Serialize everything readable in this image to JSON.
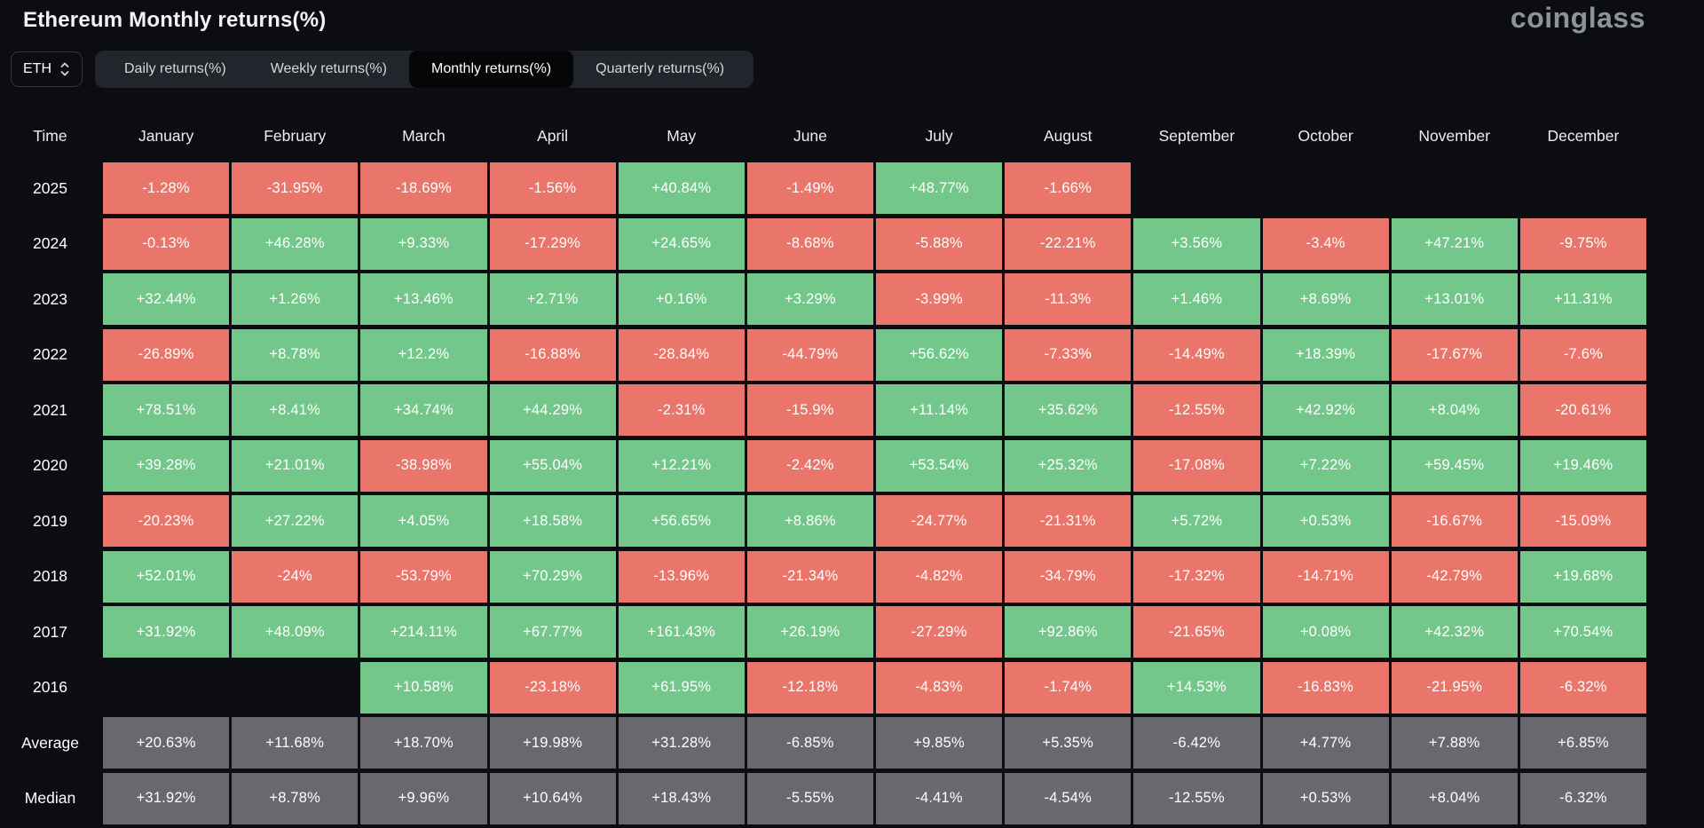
{
  "page": {
    "title": "Ethereum Monthly returns(%)",
    "logo": "coinglass"
  },
  "controls": {
    "symbol": "ETH",
    "tabs": [
      {
        "label": "Daily returns(%)",
        "active": false
      },
      {
        "label": "Weekly returns(%)",
        "active": false
      },
      {
        "label": "Monthly returns(%)",
        "active": true
      },
      {
        "label": "Quarterly returns(%)",
        "active": false
      }
    ]
  },
  "chart_data": {
    "type": "heatmap",
    "title": "Ethereum Monthly returns(%)",
    "columns": [
      "Time",
      "January",
      "February",
      "March",
      "April",
      "May",
      "June",
      "July",
      "August",
      "September",
      "October",
      "November",
      "December"
    ],
    "rows": [
      {
        "label": "2025",
        "kind": "year",
        "values": [
          "-1.28%",
          "-31.95%",
          "-18.69%",
          "-1.56%",
          "+40.84%",
          "-1.49%",
          "+48.77%",
          "-1.66%",
          "",
          "",
          "",
          ""
        ]
      },
      {
        "label": "2024",
        "kind": "year",
        "values": [
          "-0.13%",
          "+46.28%",
          "+9.33%",
          "-17.29%",
          "+24.65%",
          "-8.68%",
          "-5.88%",
          "-22.21%",
          "+3.56%",
          "-3.4%",
          "+47.21%",
          "-9.75%"
        ]
      },
      {
        "label": "2023",
        "kind": "year",
        "values": [
          "+32.44%",
          "+1.26%",
          "+13.46%",
          "+2.71%",
          "+0.16%",
          "+3.29%",
          "-3.99%",
          "-11.3%",
          "+1.46%",
          "+8.69%",
          "+13.01%",
          "+11.31%"
        ]
      },
      {
        "label": "2022",
        "kind": "year",
        "values": [
          "-26.89%",
          "+8.78%",
          "+12.2%",
          "-16.88%",
          "-28.84%",
          "-44.79%",
          "+56.62%",
          "-7.33%",
          "-14.49%",
          "+18.39%",
          "-17.67%",
          "-7.6%"
        ]
      },
      {
        "label": "2021",
        "kind": "year",
        "values": [
          "+78.51%",
          "+8.41%",
          "+34.74%",
          "+44.29%",
          "-2.31%",
          "-15.9%",
          "+11.14%",
          "+35.62%",
          "-12.55%",
          "+42.92%",
          "+8.04%",
          "-20.61%"
        ]
      },
      {
        "label": "2020",
        "kind": "year",
        "values": [
          "+39.28%",
          "+21.01%",
          "-38.98%",
          "+55.04%",
          "+12.21%",
          "-2.42%",
          "+53.54%",
          "+25.32%",
          "-17.08%",
          "+7.22%",
          "+59.45%",
          "+19.46%"
        ]
      },
      {
        "label": "2019",
        "kind": "year",
        "values": [
          "-20.23%",
          "+27.22%",
          "+4.05%",
          "+18.58%",
          "+56.65%",
          "+8.86%",
          "-24.77%",
          "-21.31%",
          "+5.72%",
          "+0.53%",
          "-16.67%",
          "-15.09%"
        ]
      },
      {
        "label": "2018",
        "kind": "year",
        "values": [
          "+52.01%",
          "-24%",
          "-53.79%",
          "+70.29%",
          "-13.96%",
          "-21.34%",
          "-4.82%",
          "-34.79%",
          "-17.32%",
          "-14.71%",
          "-42.79%",
          "+19.68%"
        ]
      },
      {
        "label": "2017",
        "kind": "year",
        "values": [
          "+31.92%",
          "+48.09%",
          "+214.11%",
          "+67.77%",
          "+161.43%",
          "+26.19%",
          "-27.29%",
          "+92.86%",
          "-21.65%",
          "+0.08%",
          "+42.32%",
          "+70.54%"
        ]
      },
      {
        "label": "2016",
        "kind": "year",
        "values": [
          "",
          "",
          "+10.58%",
          "-23.18%",
          "+61.95%",
          "-12.18%",
          "-4.83%",
          "-1.74%",
          "+14.53%",
          "-16.83%",
          "-21.95%",
          "-6.32%"
        ]
      },
      {
        "label": "Average",
        "kind": "summary",
        "values": [
          "+20.63%",
          "+11.68%",
          "+18.70%",
          "+19.98%",
          "+31.28%",
          "-6.85%",
          "+9.85%",
          "+5.35%",
          "-6.42%",
          "+4.77%",
          "+7.88%",
          "+6.85%"
        ]
      },
      {
        "label": "Median",
        "kind": "summary",
        "values": [
          "+31.92%",
          "+8.78%",
          "+9.96%",
          "+10.64%",
          "+18.43%",
          "-5.55%",
          "-4.41%",
          "-4.54%",
          "-12.55%",
          "+0.53%",
          "+8.04%",
          "-6.32%"
        ]
      }
    ],
    "colors": {
      "positive": "#73c78a",
      "negative": "#ea756a",
      "summary": "#69696d",
      "background": "#0b0d10"
    },
    "legend_position": "none",
    "grid": false
  }
}
